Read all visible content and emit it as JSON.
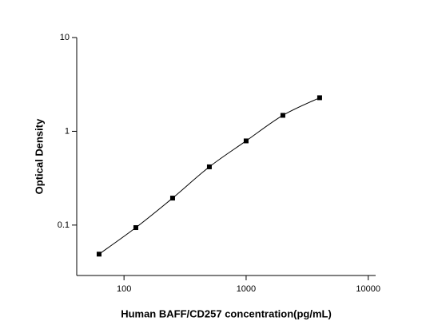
{
  "chart_data": {
    "type": "scatter",
    "x_label": "Human BAFF/CD257 concentration(pg/mL)",
    "y_label": "Optical Density",
    "x": [
      62.5,
      125,
      250,
      500,
      1000,
      2000,
      4000
    ],
    "series": [
      {
        "color": "#000000",
        "values": [
          0.049,
          0.094,
          0.194,
          0.418,
          0.79,
          1.48,
          2.28
        ]
      }
    ],
    "xlog": true,
    "ylog": true,
    "xlim": [
      41,
      11500
    ],
    "ylim": [
      0.029,
      10
    ],
    "xticks": [
      100,
      1000,
      10000
    ],
    "yticks": [
      0.1,
      1,
      10
    ],
    "fit_line": true
  }
}
